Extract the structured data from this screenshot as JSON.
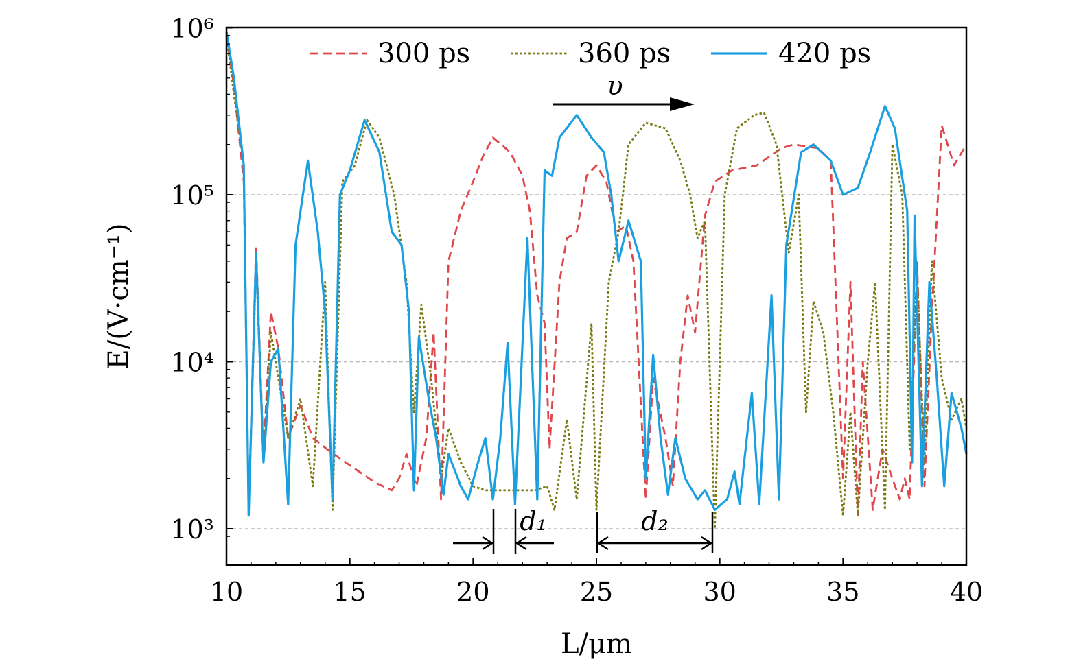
{
  "chart_data": {
    "type": "line",
    "title": "",
    "xlabel": "L/μm",
    "ylabel": "E/(V·cm⁻¹)",
    "xlim": [
      10,
      40
    ],
    "ylim": [
      850,
      1000000
    ],
    "yscale": "log",
    "grid": "horizontal dashed at decades",
    "legend_position": "top",
    "x_ticks": [
      10,
      15,
      20,
      25,
      30,
      35,
      40
    ],
    "x_tick_labels": [
      "10",
      "15",
      "20",
      "25",
      "30",
      "35",
      "40"
    ],
    "y_ticks": [
      1000,
      10000,
      100000,
      1000000
    ],
    "y_tick_labels": [
      "10³",
      "10⁴",
      "10⁵",
      "10⁶"
    ],
    "series": [
      {
        "name": "300 ps",
        "color": "#e0474c",
        "style": "dashed",
        "points": [
          [
            10,
            900000
          ],
          [
            10.3,
            450000
          ],
          [
            10.7,
            120000
          ],
          [
            10.9,
            1300
          ],
          [
            11.2,
            50000
          ],
          [
            11.5,
            2800
          ],
          [
            11.8,
            20000
          ],
          [
            12.1,
            12000
          ],
          [
            12.5,
            3500
          ],
          [
            13,
            5500
          ],
          [
            13.5,
            3500
          ],
          [
            14.2,
            2900
          ],
          [
            15,
            2400
          ],
          [
            16,
            1900
          ],
          [
            16.7,
            1700
          ],
          [
            17,
            2000
          ],
          [
            17.3,
            2800
          ],
          [
            17.7,
            1800
          ],
          [
            18.1,
            3500
          ],
          [
            18.4,
            15000
          ],
          [
            18.7,
            1500
          ],
          [
            19,
            40000
          ],
          [
            19.5,
            80000
          ],
          [
            20,
            120000
          ],
          [
            20.4,
            170000
          ],
          [
            20.8,
            220000
          ],
          [
            21.5,
            180000
          ],
          [
            22,
            130000
          ],
          [
            22.3,
            80000
          ],
          [
            22.6,
            25000
          ],
          [
            22.9,
            17000
          ],
          [
            23.1,
            3000
          ],
          [
            23.5,
            30000
          ],
          [
            23.8,
            55000
          ],
          [
            24.2,
            60000
          ],
          [
            24.6,
            130000
          ],
          [
            25,
            150000
          ],
          [
            25.4,
            120000
          ],
          [
            25.8,
            60000
          ],
          [
            26.2,
            65000
          ],
          [
            26.5,
            40000
          ],
          [
            27.0,
            1500
          ],
          [
            27.3,
            8000
          ],
          [
            27.8,
            3500
          ],
          [
            28.1,
            1800
          ],
          [
            28.4,
            10000
          ],
          [
            28.7,
            25000
          ],
          [
            29.0,
            15000
          ],
          [
            29.4,
            75000
          ],
          [
            29.8,
            120000
          ],
          [
            30.5,
            140000
          ],
          [
            31.5,
            150000
          ],
          [
            32.5,
            190000
          ],
          [
            33.0,
            200000
          ],
          [
            34,
            190000
          ],
          [
            34.5,
            160000
          ],
          [
            35.0,
            2000
          ],
          [
            35.3,
            30000
          ],
          [
            35.6,
            1200
          ],
          [
            35.8,
            10000
          ],
          [
            36.2,
            1300
          ],
          [
            36.6,
            3000
          ],
          [
            37,
            2000
          ],
          [
            37.3,
            1500
          ],
          [
            37.5,
            2000
          ],
          [
            37.7,
            1500
          ],
          [
            38.0,
            40000
          ],
          [
            38.3,
            1800
          ],
          [
            38.6,
            20000
          ],
          [
            39.0,
            260000
          ],
          [
            39.5,
            150000
          ],
          [
            40,
            200000
          ]
        ]
      },
      {
        "name": "360 ps",
        "color": "#7a7a14",
        "style": "dotted",
        "points": [
          [
            10,
            900000
          ],
          [
            10.3,
            400000
          ],
          [
            10.7,
            150000
          ],
          [
            10.9,
            1200
          ],
          [
            11.2,
            40000
          ],
          [
            11.5,
            2500
          ],
          [
            11.8,
            15000
          ],
          [
            12.1,
            8000
          ],
          [
            12.5,
            3500
          ],
          [
            13,
            6000
          ],
          [
            13.5,
            1800
          ],
          [
            14.0,
            30000
          ],
          [
            14.3,
            1300
          ],
          [
            14.7,
            120000
          ],
          [
            15.2,
            150000
          ],
          [
            15.7,
            280000
          ],
          [
            16.2,
            220000
          ],
          [
            16.8,
            100000
          ],
          [
            17.3,
            30000
          ],
          [
            17.6,
            5000
          ],
          [
            17.9,
            22000
          ],
          [
            18.3,
            8000
          ],
          [
            18.7,
            2000
          ],
          [
            19.0,
            4000
          ],
          [
            19.5,
            2500
          ],
          [
            20,
            1800
          ],
          [
            20.5,
            1700
          ],
          [
            21.5,
            1700
          ],
          [
            22.5,
            1700
          ],
          [
            23.0,
            1800
          ],
          [
            23.3,
            1300
          ],
          [
            23.8,
            4500
          ],
          [
            24.2,
            1500
          ],
          [
            24.8,
            17000
          ],
          [
            25.0,
            1300
          ],
          [
            25.5,
            30000
          ],
          [
            25.9,
            60000
          ],
          [
            26.3,
            200000
          ],
          [
            27.0,
            270000
          ],
          [
            27.8,
            250000
          ],
          [
            28.4,
            160000
          ],
          [
            28.8,
            100000
          ],
          [
            29.1,
            55000
          ],
          [
            29.4,
            70000
          ],
          [
            29.8,
            1000
          ],
          [
            30.2,
            100000
          ],
          [
            30.7,
            250000
          ],
          [
            31.4,
            300000
          ],
          [
            31.8,
            310000
          ],
          [
            32.3,
            200000
          ],
          [
            32.8,
            45000
          ],
          [
            33.2,
            100000
          ],
          [
            33.5,
            5000
          ],
          [
            33.8,
            23000
          ],
          [
            34.2,
            15000
          ],
          [
            34.6,
            5000
          ],
          [
            35.0,
            1200
          ],
          [
            35.3,
            5000
          ],
          [
            35.6,
            1200
          ],
          [
            36.0,
            10000
          ],
          [
            36.3,
            30000
          ],
          [
            36.7,
            1300
          ],
          [
            37.0,
            200000
          ],
          [
            37.4,
            100000
          ],
          [
            37.7,
            3000
          ],
          [
            38.0,
            35000
          ],
          [
            38.3,
            2500
          ],
          [
            38.6,
            40000
          ],
          [
            39.0,
            8000
          ],
          [
            39.4,
            4500
          ],
          [
            39.8,
            6000
          ],
          [
            40,
            4000
          ]
        ]
      },
      {
        "name": "420 ps",
        "color": "#1aa0e0",
        "style": "solid",
        "points": [
          [
            10,
            950000
          ],
          [
            10.3,
            500000
          ],
          [
            10.7,
            150000
          ],
          [
            10.9,
            1200
          ],
          [
            11.2,
            45000
          ],
          [
            11.5,
            2500
          ],
          [
            11.8,
            10000
          ],
          [
            12.1,
            12000
          ],
          [
            12.5,
            1400
          ],
          [
            12.8,
            50000
          ],
          [
            13.3,
            160000
          ],
          [
            13.7,
            60000
          ],
          [
            14.0,
            20000
          ],
          [
            14.3,
            1500
          ],
          [
            14.6,
            100000
          ],
          [
            15.0,
            140000
          ],
          [
            15.6,
            280000
          ],
          [
            16.2,
            180000
          ],
          [
            16.7,
            60000
          ],
          [
            17.1,
            50000
          ],
          [
            17.4,
            20000
          ],
          [
            17.6,
            1700
          ],
          [
            17.8,
            14000
          ],
          [
            18.2,
            6000
          ],
          [
            18.5,
            3500
          ],
          [
            18.8,
            1600
          ],
          [
            19.0,
            2800
          ],
          [
            19.5,
            1800
          ],
          [
            19.8,
            1500
          ],
          [
            20.2,
            2500
          ],
          [
            20.5,
            3500
          ],
          [
            20.8,
            1500
          ],
          [
            21.1,
            3500
          ],
          [
            21.4,
            13000
          ],
          [
            21.7,
            1400
          ],
          [
            22.2,
            55000
          ],
          [
            22.6,
            1500
          ],
          [
            22.9,
            140000
          ],
          [
            23.2,
            130000
          ],
          [
            23.5,
            220000
          ],
          [
            24.2,
            300000
          ],
          [
            24.8,
            220000
          ],
          [
            25.3,
            180000
          ],
          [
            25.6,
            100000
          ],
          [
            25.9,
            40000
          ],
          [
            26.3,
            70000
          ],
          [
            26.8,
            40000
          ],
          [
            27.0,
            2000
          ],
          [
            27.3,
            11000
          ],
          [
            27.6,
            3500
          ],
          [
            27.9,
            1600
          ],
          [
            28.2,
            3500
          ],
          [
            28.6,
            2000
          ],
          [
            29.1,
            1500
          ],
          [
            29.4,
            1700
          ],
          [
            29.8,
            1300
          ],
          [
            30.3,
            1500
          ],
          [
            30.6,
            2200
          ],
          [
            30.8,
            1400
          ],
          [
            31.3,
            6500
          ],
          [
            31.6,
            1400
          ],
          [
            32.1,
            25000
          ],
          [
            32.4,
            1500
          ],
          [
            32.7,
            50000
          ],
          [
            33.3,
            180000
          ],
          [
            33.8,
            200000
          ],
          [
            34.5,
            160000
          ],
          [
            35.0,
            100000
          ],
          [
            35.6,
            110000
          ],
          [
            36.1,
            180000
          ],
          [
            36.7,
            340000
          ],
          [
            37.1,
            250000
          ],
          [
            37.6,
            80000
          ],
          [
            37.8,
            2500
          ],
          [
            37.9,
            75000
          ],
          [
            38.2,
            1800
          ],
          [
            38.5,
            30000
          ],
          [
            38.8,
            8000
          ],
          [
            39.1,
            1800
          ],
          [
            39.4,
            6500
          ],
          [
            39.8,
            4000
          ],
          [
            40,
            2800
          ]
        ]
      }
    ],
    "annotations": {
      "velocity": "υ",
      "d1": "d₁",
      "d2": "d₂"
    }
  }
}
